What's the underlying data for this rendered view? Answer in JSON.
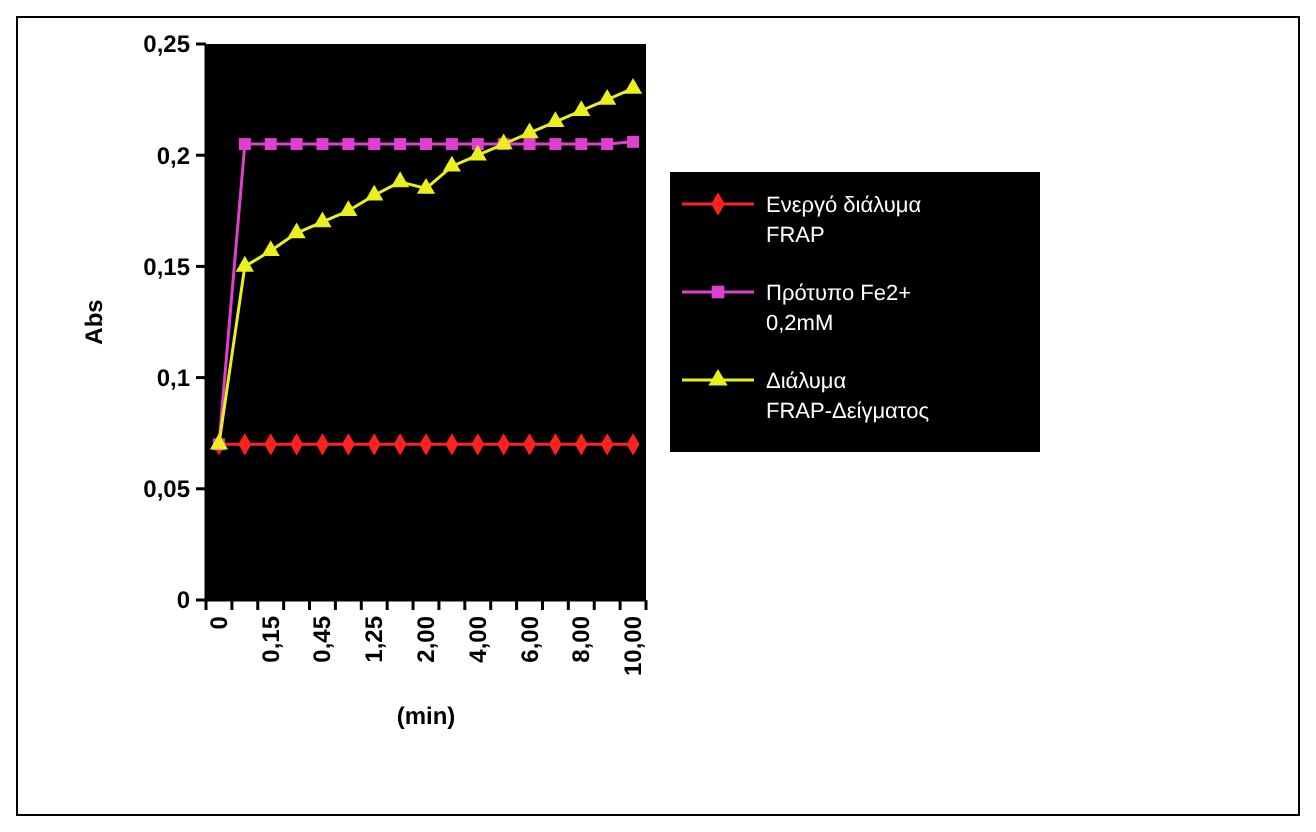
{
  "chart_data": {
    "type": "line",
    "xlabel": "(min)",
    "ylabel": "Abs",
    "categories": [
      "0",
      null,
      "0,15",
      null,
      "0,45",
      null,
      "1,25",
      null,
      "2,00",
      null,
      "4,00",
      null,
      "6,00",
      null,
      "8,00",
      null,
      "10,00"
    ],
    "series": [
      {
        "name": "Ενεργό διάλυμα FRAP",
        "color": "#ff2020",
        "marker": "diamond",
        "values": [
          0.07,
          0.07,
          0.07,
          0.07,
          0.07,
          0.07,
          0.07,
          0.07,
          0.07,
          0.07,
          0.07,
          0.07,
          0.07,
          0.07,
          0.07,
          0.07,
          0.07
        ]
      },
      {
        "name": "Πρότυπο Fe2+ 0,2mM",
        "color": "#e040d0",
        "marker": "square",
        "values": [
          0.07,
          0.205,
          0.205,
          0.205,
          0.205,
          0.205,
          0.205,
          0.205,
          0.205,
          0.205,
          0.205,
          0.205,
          0.205,
          0.205,
          0.205,
          0.205,
          0.206
        ]
      },
      {
        "name": "Διάλυμα FRAP-Δείγματος",
        "color": "#e8f020",
        "marker": "triangle",
        "values": [
          0.07,
          0.15,
          0.157,
          0.165,
          0.17,
          0.175,
          0.182,
          0.188,
          0.185,
          0.195,
          0.2,
          0.205,
          0.21,
          0.215,
          0.22,
          0.225,
          0.23
        ]
      }
    ],
    "ylim": [
      0,
      0.25
    ],
    "yticks": [
      0,
      {
        "value": 0.05,
        "label": "0,05"
      },
      {
        "value": 0.1,
        "label": "0,1"
      },
      {
        "value": 0.15,
        "label": "0,15"
      },
      {
        "value": 0.2,
        "label": "0,2"
      },
      {
        "value": 0.25,
        "label": "0,25"
      }
    ],
    "grid": false,
    "legend": "right",
    "line_style": "solid"
  }
}
